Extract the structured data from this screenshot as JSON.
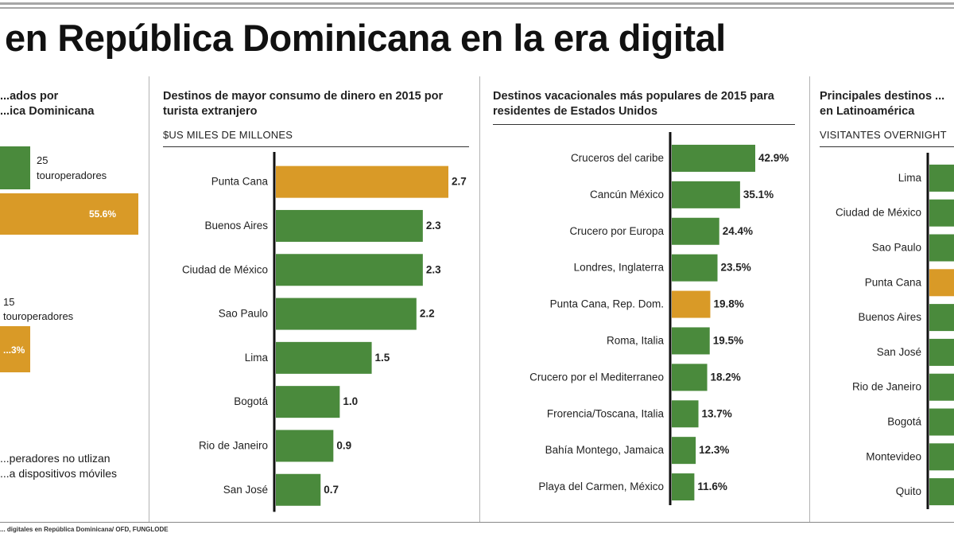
{
  "headline": "en República Dominicana en la era digital",
  "colors": {
    "green": "#4a8a3c",
    "orange": "#d99a27",
    "axis": "#111111"
  },
  "source": "... digitales en República Dominicana/ OFD, FUNGLODE",
  "panel1": {
    "title": "...ados por\n...ica Dominicana",
    "group_a": {
      "count": "25",
      "label": "touroperadores",
      "pct": "55.6%",
      "pct_value": 55.6
    },
    "group_b": {
      "count": "15",
      "label": "touroperadores",
      "pct": "...3%"
    },
    "note": "...peradores no utlizan\n...a dispositivos móviles"
  },
  "chart_data": [
    {
      "type": "bar",
      "title": "Destinos de mayor consumo de dinero en 2015 por turista extranjero",
      "subtitle": "$US MILES DE MILLONES",
      "orientation": "horizontal",
      "categories": [
        "Punta Cana",
        "Buenos Aires",
        "Ciudad de México",
        "Sao Paulo",
        "Lima",
        "Bogotá",
        "Rio de Janeiro",
        "San José"
      ],
      "values": [
        2.7,
        2.3,
        2.3,
        2.2,
        1.5,
        1.0,
        0.9,
        0.7
      ],
      "value_labels": [
        "2.7",
        "2.3",
        "2.3",
        "2.2",
        "1.5",
        "1.0",
        "0.9",
        "0.7"
      ],
      "highlight": [
        "Punta Cana"
      ],
      "xlim": [
        0,
        2.7
      ]
    },
    {
      "type": "bar",
      "title": "Destinos vacacionales más populares de 2015 para residentes de Estados Unidos",
      "orientation": "horizontal",
      "categories": [
        "Cruceros del caribe",
        "Cancún México",
        "Crucero por Europa",
        "Londres, Inglaterra",
        "Punta Cana, Rep. Dom.",
        "Roma, Italia",
        "Crucero por el Mediterraneo",
        "Frorencia/Toscana, Italia",
        "Bahía Montego, Jamaica",
        "Playa del Carmen, México"
      ],
      "values": [
        42.9,
        35.1,
        24.4,
        23.5,
        19.8,
        19.5,
        18.2,
        13.7,
        12.3,
        11.6
      ],
      "value_labels": [
        "42.9%",
        "35.1%",
        "24.4%",
        "23.5%",
        "19.8%",
        "19.5%",
        "18.2%",
        "13.7%",
        "12.3%",
        "11.6%"
      ],
      "highlight": [
        "Punta Cana, Rep. Dom."
      ],
      "xlim": [
        0,
        42.9
      ]
    },
    {
      "type": "bar",
      "title": "Principales destinos ...\nen Latinoamérica",
      "subtitle": "VISITANTES OVERNIGHT",
      "orientation": "horizontal",
      "categories": [
        "Lima",
        "Ciudad de México",
        "Sao Paulo",
        "Punta Cana",
        "Buenos Aires",
        "San José",
        "Rio de Janeiro",
        "Bogotá",
        "Montevideo",
        "Quito"
      ],
      "highlight": [
        "Punta Cana"
      ],
      "values_visible": false
    }
  ]
}
